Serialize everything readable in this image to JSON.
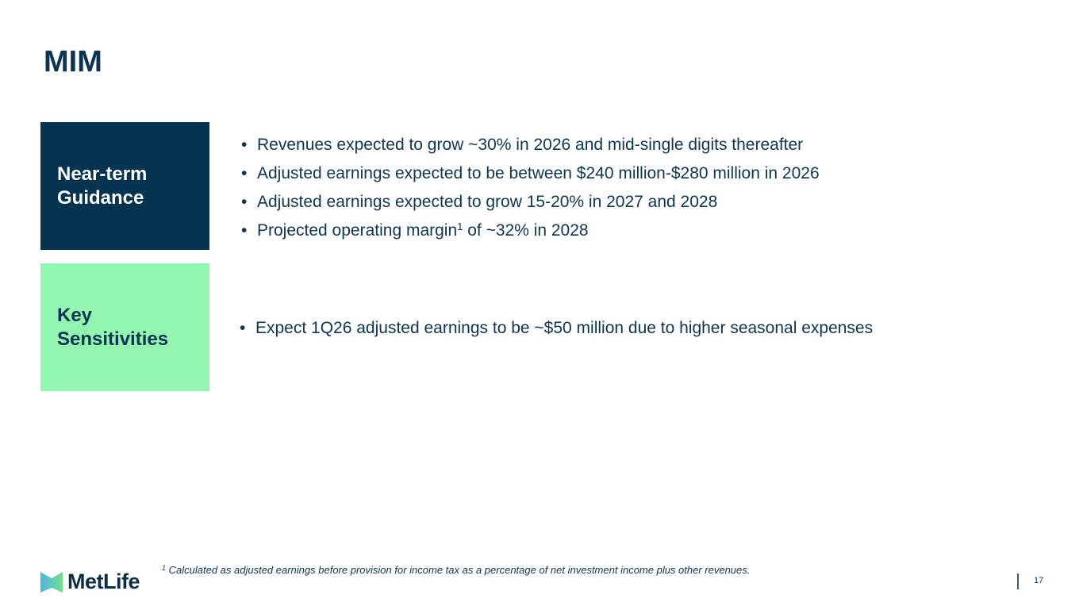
{
  "title": "MIM",
  "sections": [
    {
      "label_line1": "Near-term",
      "label_line2": "Guidance",
      "color": "#04344f",
      "bullets": [
        {
          "text": "Revenues expected to grow ~30% in 2026 and mid-single digits thereafter"
        },
        {
          "text": "Adjusted earnings expected to be between $240 million-$280 million in 2026"
        },
        {
          "text": "Adjusted earnings expected to grow 15-20% in 2027 and 2028"
        },
        {
          "text": "Projected operating margin",
          "sup": "1",
          "text_after": " of ~32% in 2028"
        }
      ]
    },
    {
      "label_line1": "Key",
      "label_line2": "Sensitivities",
      "color": "#92f5b0",
      "bullets": [
        {
          "text": "Expect 1Q26 adjusted earnings to be ~$50 million due to higher seasonal expenses"
        }
      ]
    }
  ],
  "footnote": {
    "marker": "1",
    "text": " Calculated as adjusted earnings before provision for income tax as a percentage of net investment income plus other revenues."
  },
  "logo": {
    "text": "MetLife",
    "icon": "metlife-m-logo-icon"
  },
  "page_number": "17"
}
